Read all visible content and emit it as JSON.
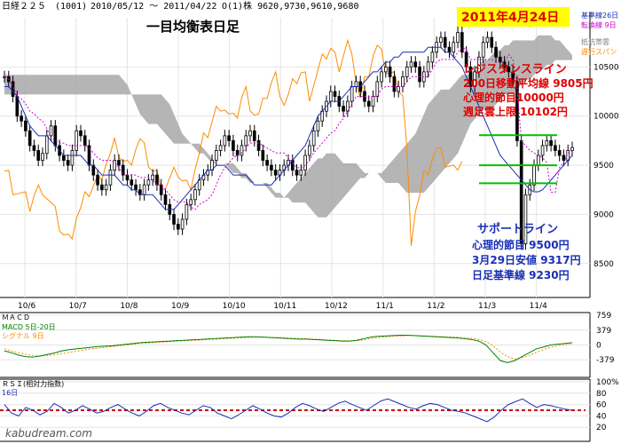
{
  "header": {
    "ticker": "日経２２５",
    "code": "(1001)",
    "range": "2010/05/12 ～ 2011/04/22",
    "ohlc": "O(1)株 9620,9730,9610,9680"
  },
  "title": "一目均衡表日足",
  "date_badge": "2011年4月24日",
  "legend": {
    "line1": "基準線26日",
    "line2": "転換線 9日",
    "line3": "抵抗帯雲",
    "line4": "遅行スパン"
  },
  "resistance": {
    "heading": "レジスタンスライン",
    "l1": "200日移動平均線  9805円",
    "l2": "心理的節目10000円",
    "l3": "週足雲上限  10102円"
  },
  "support": {
    "heading": "サポートライン",
    "l1": "心理的節目  9500円",
    "l2": "3月29日安値  9317円",
    "l3": "日足基準線  9230円"
  },
  "macd_panel": {
    "label": "ＭＡＣＤ",
    "l1": "MACD 5日-20日",
    "l2": "シグナル 9日"
  },
  "rsi_panel": {
    "label": "ＲＳＩ(相対力指数)",
    "l1": "16日"
  },
  "watermark": "kabudream.com",
  "colors": {
    "candle": "#000000",
    "kijun": "#1a2fb5",
    "tenkan": "#d000d0",
    "chikou": "#ff8c00",
    "cloud": "#a8a8a8",
    "cloud_dark": "#606060",
    "resistance_line": "#00c000",
    "rsi_ref": "#cc0000",
    "macd": "#008000",
    "signal": "#ff8c00",
    "rsi": "#1a2fb5"
  },
  "chart_data": [
    {
      "type": "candlestick",
      "x_ticks": [
        "10/6",
        "10/7",
        "10/8",
        "10/9",
        "10/10",
        "10/11",
        "10/12",
        "11/1",
        "11/2",
        "11/3",
        "11/4"
      ],
      "y_ticks": [
        8500,
        9000,
        9500,
        10000,
        10500
      ],
      "ylim": [
        8200,
        11000
      ],
      "horizontal_levels": [
        9805,
        9500,
        9317
      ],
      "close": [
        10400,
        10350,
        10200,
        10000,
        9950,
        9850,
        9700,
        9650,
        9550,
        9620,
        9800,
        9900,
        9700,
        9600,
        9550,
        9500,
        9650,
        9850,
        9800,
        9700,
        9500,
        9400,
        9300,
        9250,
        9300,
        9450,
        9550,
        9500,
        9400,
        9350,
        9300,
        9250,
        9200,
        9300,
        9350,
        9400,
        9300,
        9200,
        9100,
        9000,
        8900,
        8850,
        8950,
        9100,
        9150,
        9250,
        9350,
        9400,
        9450,
        9550,
        9650,
        9700,
        9800,
        9750,
        9650,
        9600,
        9700,
        9800,
        9850,
        9750,
        9650,
        9550,
        9500,
        9450,
        9400,
        9450,
        9500,
        9550,
        9450,
        9400,
        9450,
        9600,
        9700,
        9850,
        9950,
        10050,
        10150,
        10250,
        10200,
        10100,
        10050,
        10150,
        10300,
        10350,
        10250,
        10150,
        10100,
        10200,
        10350,
        10450,
        10500,
        10400,
        10250,
        10300,
        10400,
        10500,
        10550,
        10500,
        10350,
        10450,
        10550,
        10650,
        10750,
        10800,
        10700,
        10650,
        10750,
        10850,
        10650,
        10500,
        10300,
        10450,
        10600,
        10750,
        10800,
        10700,
        10600,
        10550,
        10500,
        10450,
        10350,
        9750,
        8700,
        9200,
        9300,
        9500,
        9600,
        9700,
        9750,
        9700,
        9650,
        9600,
        9550,
        9650,
        9680
      ],
      "kijun": [
        10300,
        10300,
        10250,
        10200,
        10100,
        10000,
        9900,
        9850,
        9800,
        9800,
        9800,
        9750,
        9700,
        9650,
        9600,
        9600,
        9600,
        9600,
        9600,
        9550,
        9500,
        9500,
        9450,
        9400,
        9400,
        9400,
        9400,
        9350,
        9300,
        9300,
        9250,
        9250,
        9200,
        9200,
        9200,
        9200,
        9150,
        9100,
        9050,
        9050,
        9050,
        9100,
        9150,
        9200,
        9250,
        9300,
        9350,
        9400,
        9450,
        9450,
        9500,
        9500,
        9500,
        9450,
        9400,
        9400,
        9400,
        9400,
        9350,
        9300,
        9300,
        9300,
        9300,
        9300,
        9350,
        9400,
        9450,
        9500,
        9550,
        9600,
        9650,
        9700,
        9800,
        9900,
        10000,
        10050,
        10100,
        10150,
        10150,
        10150,
        10200,
        10250,
        10300,
        10300,
        10300,
        10350,
        10400,
        10450,
        10450,
        10500,
        10550,
        10550,
        10600,
        10600,
        10650,
        10650,
        10650,
        10650,
        10650,
        10650,
        10700,
        10700,
        10700,
        10700,
        10650,
        10650,
        10600,
        10550,
        10500,
        10400,
        10300,
        10200,
        10100,
        10000,
        9900,
        9800,
        9700,
        9600,
        9550,
        9500,
        9450,
        9400,
        9350,
        9300,
        9250,
        9230,
        9230,
        9250,
        9300,
        9350,
        9400,
        9450,
        9500,
        9550,
        9600
      ]
    },
    {
      "type": "line",
      "name": "MACD",
      "y_ticks": [
        759,
        379,
        0,
        -379
      ],
      "ylim": [
        -759,
        759
      ],
      "macd": [
        -150,
        -200,
        -260,
        -300,
        -310,
        -280,
        -240,
        -200,
        -150,
        -120,
        -100,
        -80,
        -60,
        -40,
        -30,
        -20,
        0,
        20,
        40,
        60,
        70,
        80,
        90,
        100,
        110,
        120,
        130,
        140,
        150,
        160,
        170,
        180,
        190,
        200,
        210,
        210,
        200,
        190,
        180,
        170,
        160,
        150,
        150,
        140,
        130,
        120,
        110,
        100,
        100,
        120,
        160,
        200,
        220,
        230,
        240,
        250,
        250,
        240,
        230,
        220,
        210,
        200,
        190,
        180,
        160,
        140,
        100,
        0,
        -200,
        -400,
        -450,
        -400,
        -300,
        -200,
        -100,
        -50,
        0,
        20,
        40,
        60
      ],
      "signal": [
        -100,
        -150,
        -200,
        -240,
        -270,
        -280,
        -270,
        -250,
        -220,
        -190,
        -160,
        -130,
        -100,
        -80,
        -60,
        -40,
        -20,
        0,
        20,
        40,
        55,
        65,
        75,
        85,
        95,
        105,
        115,
        125,
        135,
        145,
        155,
        165,
        175,
        185,
        195,
        200,
        200,
        195,
        190,
        185,
        175,
        165,
        160,
        150,
        140,
        130,
        120,
        110,
        105,
        110,
        130,
        160,
        190,
        210,
        220,
        230,
        240,
        240,
        235,
        228,
        220,
        212,
        204,
        196,
        185,
        170,
        140,
        90,
        -20,
        -180,
        -300,
        -360,
        -330,
        -270,
        -190,
        -120,
        -60,
        -20,
        10,
        35
      ]
    },
    {
      "type": "line",
      "name": "RSI",
      "y_ticks": [
        100,
        80,
        60,
        40,
        20
      ],
      "ylim": [
        0,
        100
      ],
      "reference": 50,
      "rsi": [
        60,
        45,
        40,
        55,
        50,
        42,
        48,
        62,
        55,
        45,
        50,
        58,
        52,
        45,
        48,
        55,
        60,
        52,
        45,
        40,
        48,
        58,
        62,
        55,
        50,
        45,
        42,
        50,
        58,
        55,
        45,
        40,
        35,
        42,
        50,
        58,
        52,
        45,
        40,
        38,
        45,
        55,
        62,
        58,
        52,
        48,
        55,
        62,
        66,
        60,
        55,
        50,
        58,
        66,
        70,
        65,
        60,
        55,
        52,
        58,
        62,
        60,
        55,
        50,
        48,
        45,
        40,
        35,
        30,
        38,
        50,
        60,
        65,
        70,
        62,
        55,
        60,
        58,
        55,
        52,
        50
      ]
    }
  ]
}
